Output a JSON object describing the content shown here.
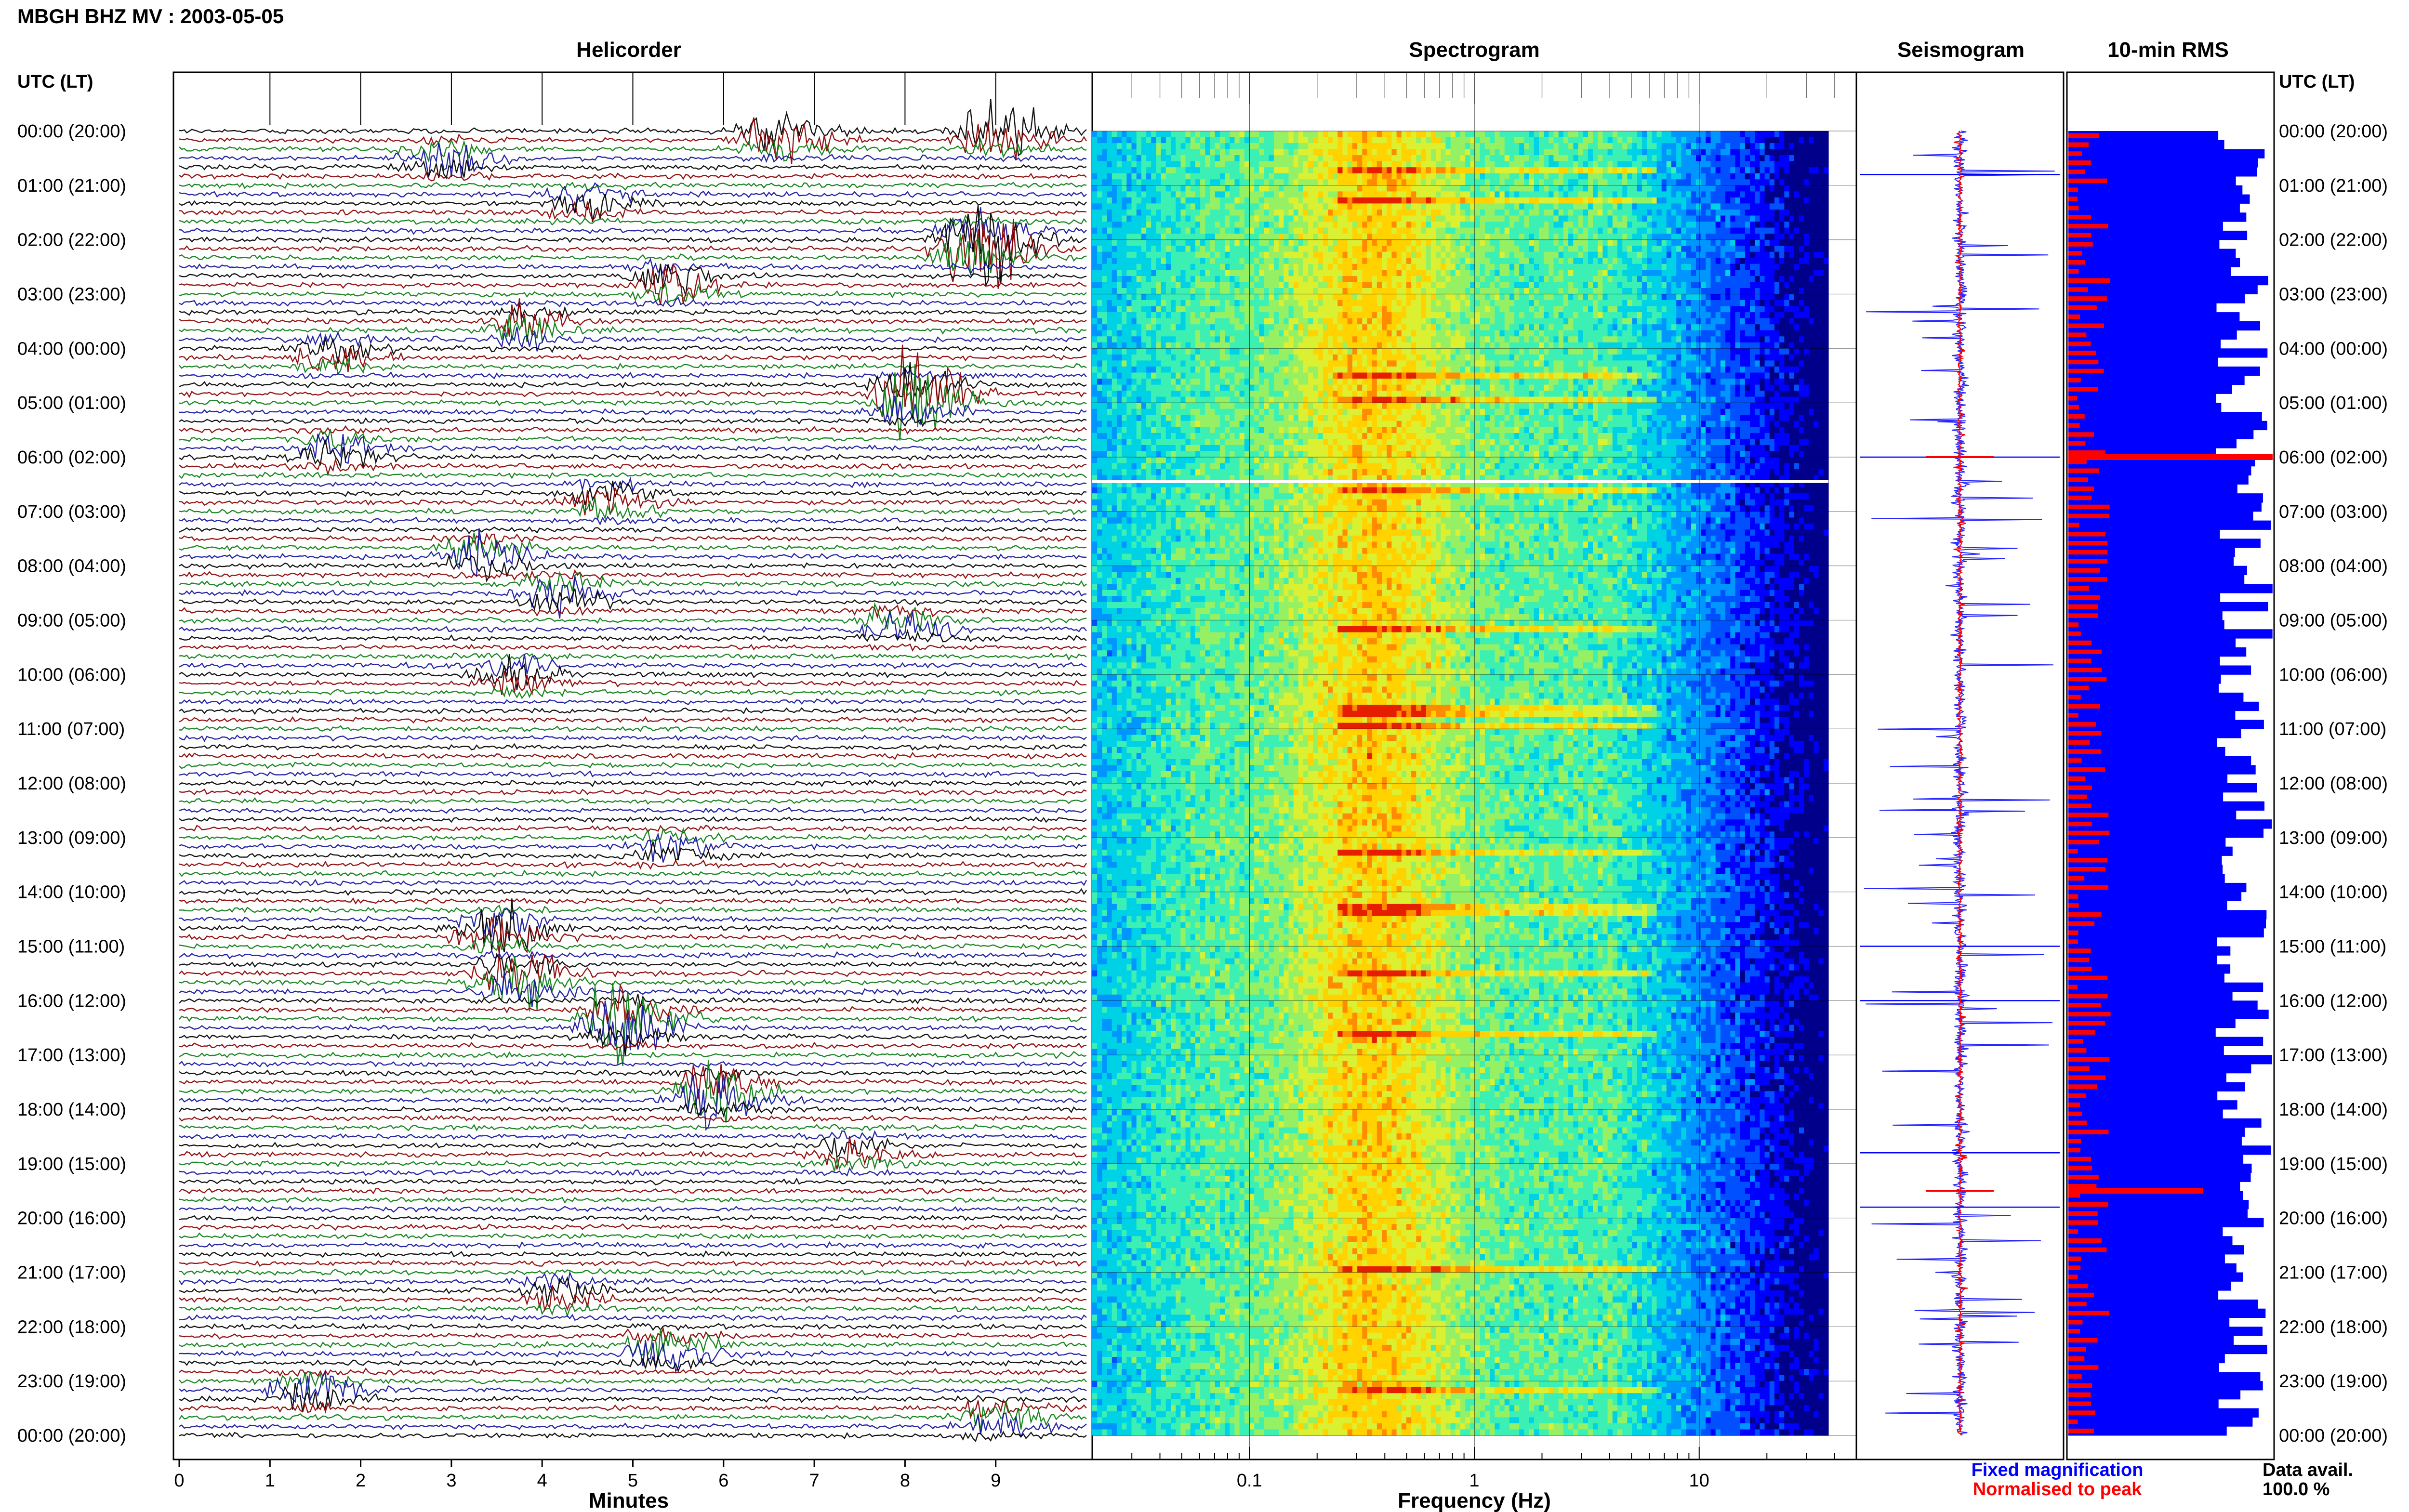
{
  "header": {
    "station_title": "MBGH BHZ MV : 2003-05-05"
  },
  "panels": {
    "helicorder": "Helicorder",
    "spectrogram": "Spectrogram",
    "seismogram": "Seismogram",
    "rms": "10-min RMS"
  },
  "axis_labels": {
    "time_left": "UTC (LT)",
    "time_right": "UTC (LT)",
    "helicorder_x": "Minutes",
    "spectrogram_x": "Frequency (Hz)"
  },
  "legend": {
    "fixed": "Fixed magnification",
    "normalised": "Normalised to peak",
    "data_avail_label": "Data avail.",
    "data_avail_value": "100.0 %"
  },
  "colors": {
    "trace_cycle": [
      "#000000",
      "#8b0000",
      "#0a7d12",
      "#1414a0"
    ],
    "seismogram_fixed": "#0000ff",
    "seismogram_normalised": "#ff0000",
    "rms_bar": "#0000ff",
    "rms_norm": "#ff0000",
    "legend_fixed": "#0000ff",
    "legend_normalised": "#ff0000"
  },
  "chart_data": [
    {
      "type": "line",
      "name": "helicorder",
      "xlabel": "Minutes",
      "xlim": [
        0,
        10
      ],
      "x_ticks": [
        0,
        1,
        2,
        3,
        4,
        5,
        6,
        7,
        8,
        9
      ],
      "row_labels": [
        "00:00 (20:00)",
        "01:00 (21:00)",
        "02:00 (22:00)",
        "03:00 (23:00)",
        "04:00 (00:00)",
        "05:00 (01:00)",
        "06:00 (02:00)",
        "07:00 (03:00)",
        "08:00 (04:00)",
        "09:00 (05:00)",
        "10:00 (06:00)",
        "11:00 (07:00)",
        "12:00 (08:00)",
        "13:00 (09:00)",
        "14:00 (10:00)",
        "15:00 (11:00)",
        "16:00 (12:00)",
        "17:00 (13:00)",
        "18:00 (14:00)",
        "19:00 (15:00)",
        "20:00 (16:00)",
        "21:00 (17:00)",
        "22:00 (18:00)",
        "23:00 (19:00)",
        "00:00 (20:00)"
      ],
      "traces_per_hour": 6,
      "events": [
        {
          "hour": 0.0,
          "minute": 8.9,
          "amp": 1.6
        },
        {
          "hour": 0.1,
          "minute": 6.5,
          "amp": 1.2
        },
        {
          "hour": 0.5,
          "minute": 2.8,
          "amp": 0.9
        },
        {
          "hour": 1.3,
          "minute": 4.4,
          "amp": 0.7
        },
        {
          "hour": 2.1,
          "minute": 8.7,
          "amp": 2.8
        },
        {
          "hour": 2.8,
          "minute": 5.3,
          "amp": 0.9
        },
        {
          "hour": 3.6,
          "minute": 3.7,
          "amp": 0.9
        },
        {
          "hour": 4.1,
          "minute": 1.6,
          "amp": 0.6
        },
        {
          "hour": 4.9,
          "minute": 8.0,
          "amp": 2.2
        },
        {
          "hour": 5.9,
          "minute": 1.6,
          "amp": 0.8
        },
        {
          "hour": 6.8,
          "minute": 4.6,
          "amp": 0.8
        },
        {
          "hour": 7.8,
          "minute": 3.2,
          "amp": 1.0
        },
        {
          "hour": 8.5,
          "minute": 4.1,
          "amp": 0.9
        },
        {
          "hour": 9.1,
          "minute": 7.8,
          "amp": 0.7
        },
        {
          "hour": 10.0,
          "minute": 3.6,
          "amp": 0.7
        },
        {
          "hour": 13.2,
          "minute": 5.3,
          "amp": 0.6
        },
        {
          "hour": 14.7,
          "minute": 3.4,
          "amp": 1.3
        },
        {
          "hour": 15.6,
          "minute": 3.6,
          "amp": 1.5
        },
        {
          "hour": 16.4,
          "minute": 4.8,
          "amp": 1.8
        },
        {
          "hour": 17.7,
          "minute": 5.8,
          "amp": 1.6
        },
        {
          "hour": 18.8,
          "minute": 7.3,
          "amp": 0.6
        },
        {
          "hour": 21.4,
          "minute": 4.1,
          "amp": 0.6
        },
        {
          "hour": 22.4,
          "minute": 5.2,
          "amp": 0.8
        },
        {
          "hour": 23.2,
          "minute": 1.3,
          "amp": 0.8
        },
        {
          "hour": 23.7,
          "minute": 8.9,
          "amp": 0.7
        }
      ]
    },
    {
      "type": "heatmap",
      "name": "spectrogram",
      "xlabel": "Frequency (Hz)",
      "x_scale": "log",
      "xlim": [
        0.02,
        50
      ],
      "x_tick_labels": [
        0.1,
        1,
        10
      ],
      "y_range_hours": [
        0,
        24
      ],
      "gap_at_hour": 6.45,
      "palette": [
        "#00008b",
        "#0000ff",
        "#0050ff",
        "#0096ff",
        "#00d2e6",
        "#3cf0b4",
        "#96f064",
        "#dcf032",
        "#ffd200",
        "#ff8c00",
        "#e61e00"
      ]
    },
    {
      "type": "line",
      "name": "seismogram",
      "y_range_hours": [
        0,
        24
      ],
      "series": [
        {
          "name": "Fixed magnification",
          "color": "#0000ff"
        },
        {
          "name": "Normalised to peak",
          "color": "#ff0000"
        }
      ]
    },
    {
      "type": "bar",
      "name": "10-min RMS",
      "orientation": "horizontal",
      "bins_per_hour": 6,
      "y_range_hours": [
        0,
        24
      ],
      "series": [
        {
          "name": "Fixed magnification",
          "color": "#0000ff"
        },
        {
          "name": "Normalised to peak",
          "color": "#ff0000"
        }
      ]
    }
  ]
}
